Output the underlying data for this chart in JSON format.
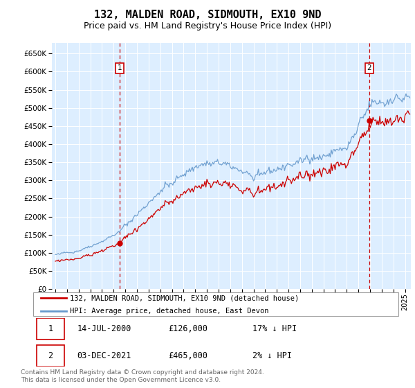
{
  "title": "132, MALDEN ROAD, SIDMOUTH, EX10 9ND",
  "subtitle": "Price paid vs. HM Land Registry's House Price Index (HPI)",
  "ylabel_ticks": [
    0,
    50000,
    100000,
    150000,
    200000,
    250000,
    300000,
    350000,
    400000,
    450000,
    500000,
    550000,
    600000,
    650000
  ],
  "ylim": [
    0,
    680000
  ],
  "xlim_start": 1994.7,
  "xlim_end": 2025.5,
  "sale1_date": 2000.536,
  "sale1_price": 126000,
  "sale2_date": 2021.92,
  "sale2_price": 465000,
  "line_color_price": "#cc0000",
  "line_color_hpi": "#6699cc",
  "grid_bg_color": "#ddeeff",
  "grid_color": "#ffffff",
  "legend_label_price": "132, MALDEN ROAD, SIDMOUTH, EX10 9ND (detached house)",
  "legend_label_hpi": "HPI: Average price, detached house, East Devon",
  "table_row1": [
    "1",
    "14-JUL-2000",
    "£126,000",
    "17% ↓ HPI"
  ],
  "table_row2": [
    "2",
    "03-DEC-2021",
    "£465,000",
    "2% ↓ HPI"
  ],
  "footnote": "Contains HM Land Registry data © Crown copyright and database right 2024.\nThis data is licensed under the Open Government Licence v3.0.",
  "title_fontsize": 11,
  "subtitle_fontsize": 9
}
